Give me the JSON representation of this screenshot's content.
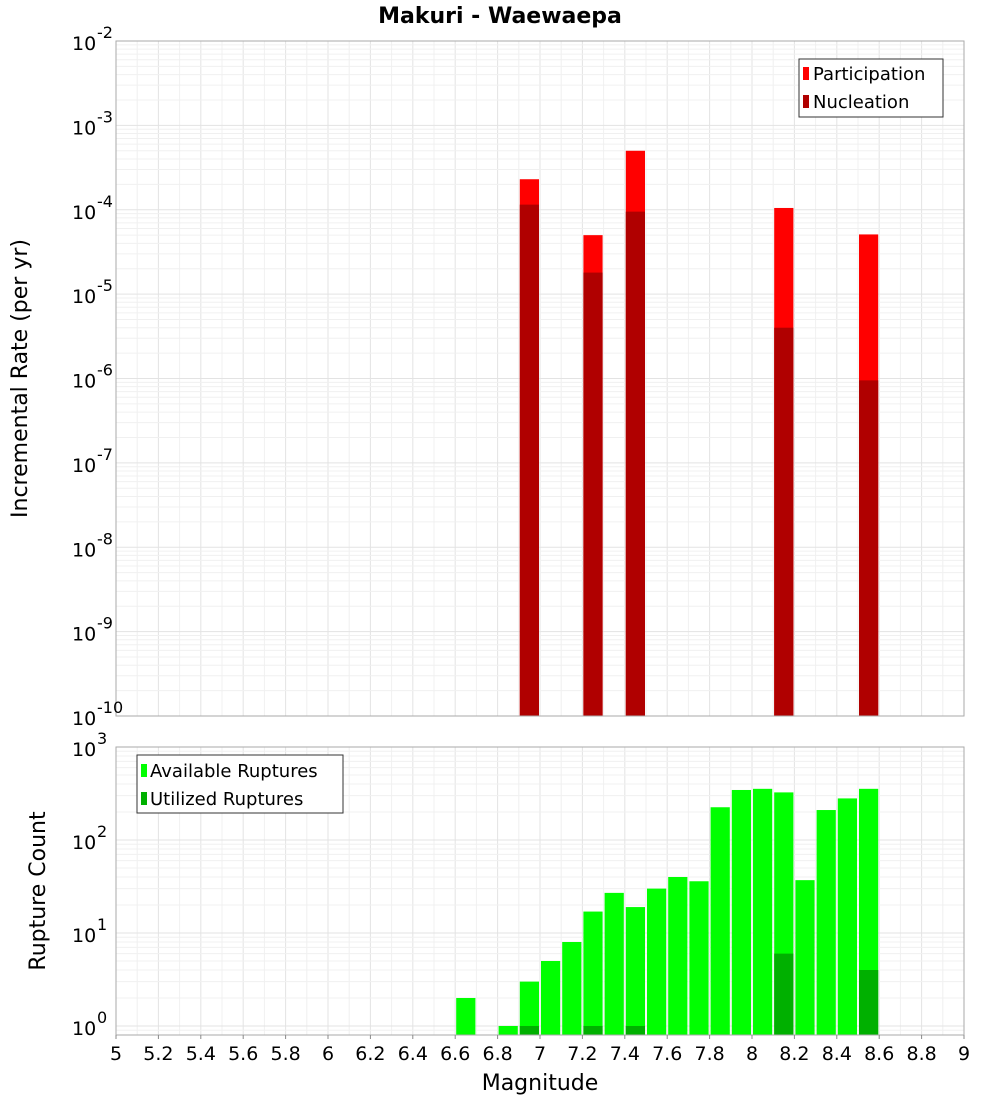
{
  "title": "Makuri - Waewaepa",
  "colors": {
    "participation": "#ff0000",
    "nucleation": "#b00000",
    "available": "#00ff00",
    "utilized": "#00b000"
  },
  "chart_data": [
    {
      "type": "bar",
      "ylabel": "Incremental Rate (per yr)",
      "yscale": "log",
      "ylim": [
        1e-10,
        0.01
      ],
      "y_ticks": [
        {
          "base": "10",
          "exp": "-10"
        },
        {
          "base": "10",
          "exp": "-9"
        },
        {
          "base": "10",
          "exp": "-8"
        },
        {
          "base": "10",
          "exp": "-7"
        },
        {
          "base": "10",
          "exp": "-6"
        },
        {
          "base": "10",
          "exp": "-5"
        },
        {
          "base": "10",
          "exp": "-4"
        },
        {
          "base": "10",
          "exp": "-3"
        },
        {
          "base": "10",
          "exp": "-2"
        }
      ],
      "xlim": [
        5,
        9
      ],
      "bin_width": 0.1,
      "legend": [
        "Participation",
        "Nucleation"
      ],
      "legend_position": "top-right",
      "series": [
        {
          "name": "Participation",
          "x": [
            6.95,
            7.25,
            7.45,
            8.15,
            8.55
          ],
          "values": [
            0.00023,
            5e-05,
            0.0005,
            0.000105,
            5.1e-05
          ]
        },
        {
          "name": "Nucleation",
          "x": [
            6.95,
            7.25,
            7.45,
            8.15,
            8.55
          ],
          "values": [
            0.000115,
            1.8e-05,
            9.5e-05,
            4e-06,
            9.5e-07
          ]
        }
      ]
    },
    {
      "type": "bar",
      "ylabel": "Rupture Count",
      "xlabel": "Magnitude",
      "yscale": "log",
      "ylim": [
        0.8,
        1000
      ],
      "y_ticks": [
        {
          "base": "10",
          "exp": "0"
        },
        {
          "base": "10",
          "exp": "1"
        },
        {
          "base": "10",
          "exp": "2"
        },
        {
          "base": "10",
          "exp": "3"
        }
      ],
      "xlim": [
        5,
        9
      ],
      "x_ticks": [
        "5",
        "5.2",
        "5.4",
        "5.6",
        "5.8",
        "6",
        "6.2",
        "6.4",
        "6.6",
        "6.8",
        "7",
        "7.2",
        "7.4",
        "7.6",
        "7.8",
        "8",
        "8.2",
        "8.4",
        "8.6",
        "8.8",
        "9"
      ],
      "bin_width": 0.1,
      "legend": [
        "Available Ruptures",
        "Utilized Ruptures"
      ],
      "legend_position": "top-left",
      "series": [
        {
          "name": "Available Ruptures",
          "x": [
            6.65,
            6.85,
            6.95,
            7.05,
            7.15,
            7.25,
            7.35,
            7.45,
            7.55,
            7.65,
            7.75,
            7.85,
            7.95,
            8.05,
            8.15,
            8.25,
            8.35,
            8.45,
            8.55
          ],
          "values": [
            2,
            1,
            3,
            5,
            8,
            17,
            27,
            19,
            30,
            40,
            36,
            225,
            345,
            355,
            325,
            37,
            210,
            280,
            355
          ]
        },
        {
          "name": "Utilized Ruptures",
          "x": [
            6.95,
            7.25,
            7.45,
            8.15,
            8.55
          ],
          "values": [
            1,
            1,
            1,
            6,
            4
          ]
        }
      ]
    }
  ]
}
